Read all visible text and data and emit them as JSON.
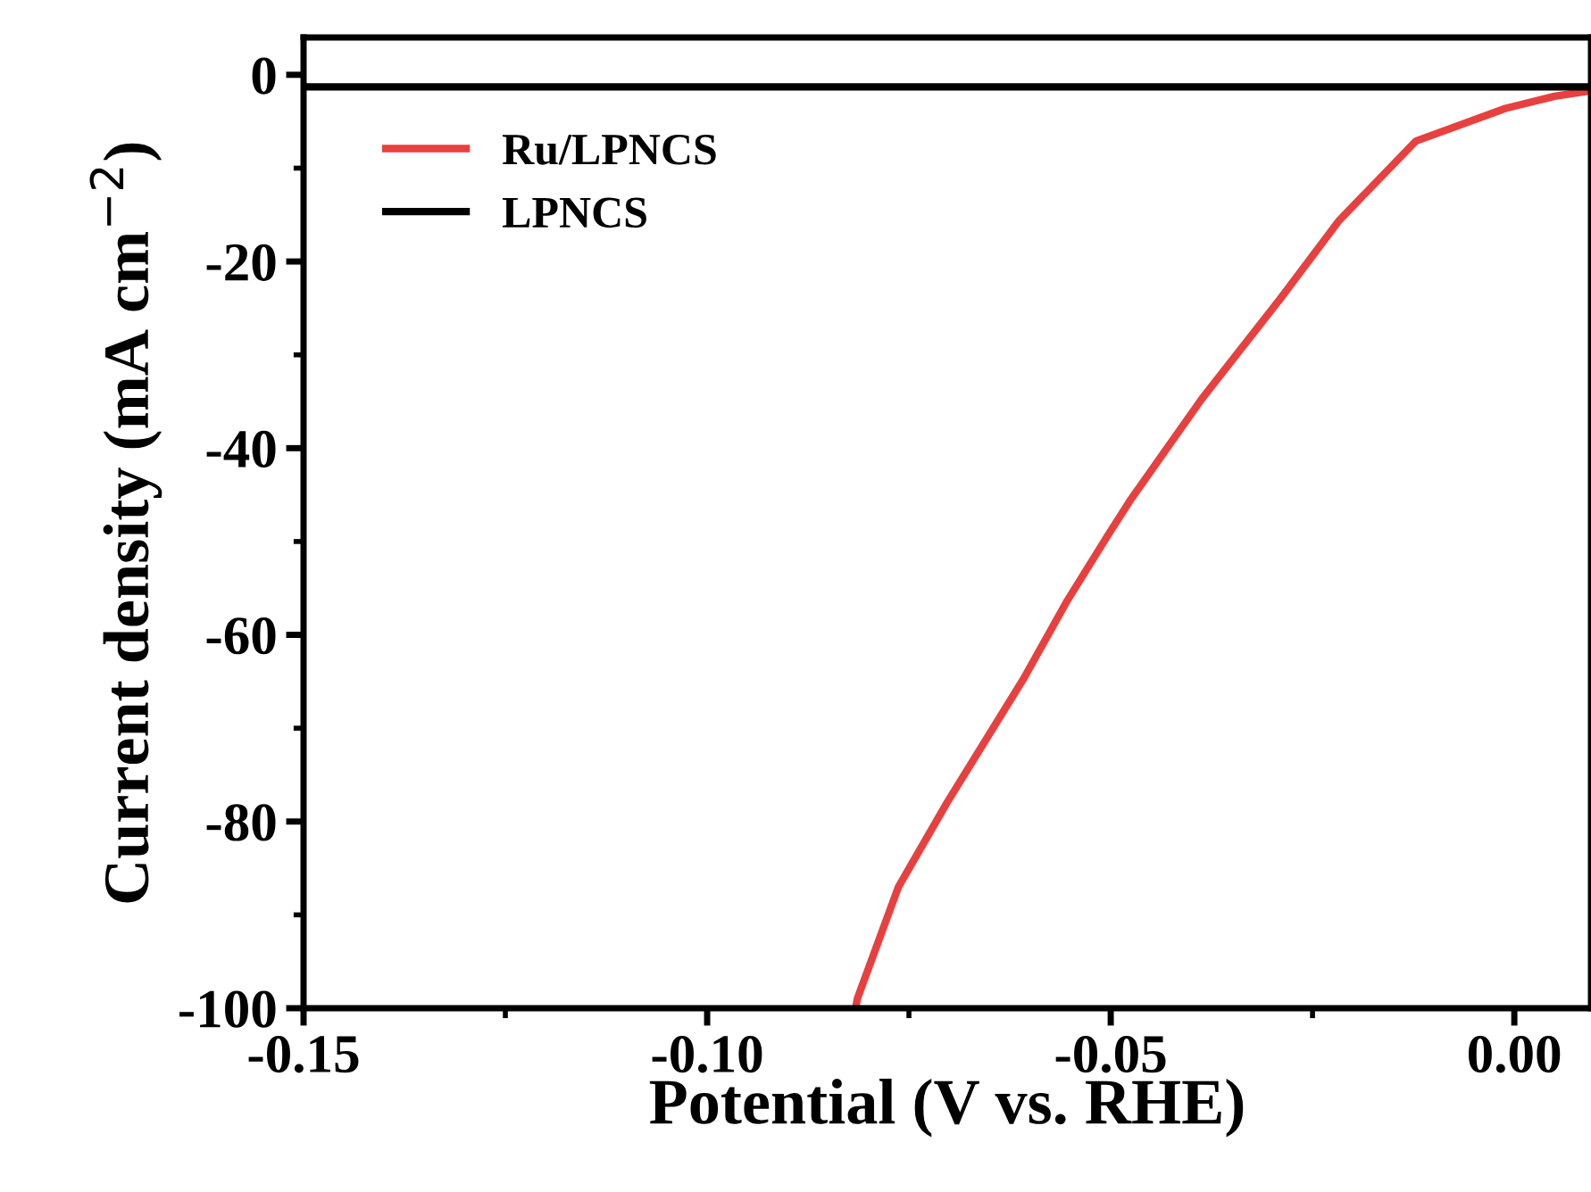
{
  "chart_data": {
    "type": "line",
    "xlabel": "Potential (V vs. RHE)",
    "ylabel": "Current density (mA cm$^{−2}$)",
    "xlim": [
      -0.15,
      0.0095
    ],
    "ylim": [
      -100,
      4
    ],
    "xticks": [
      {
        "value": -0.15,
        "label": "-0.15"
      },
      {
        "value": -0.125,
        "label": null
      },
      {
        "value": -0.1,
        "label": "-0.10"
      },
      {
        "value": -0.075,
        "label": null
      },
      {
        "value": -0.05,
        "label": "-0.05"
      },
      {
        "value": -0.025,
        "label": null
      },
      {
        "value": 0,
        "label": "0.00"
      }
    ],
    "yticks": [
      -100,
      {
        "value": -90,
        "label": null
      },
      -80,
      {
        "value": -70,
        "label": null
      },
      -60,
      {
        "value": -50,
        "label": null
      },
      -40,
      {
        "value": -30,
        "label": null
      },
      -20,
      {
        "value": -10,
        "label": null
      },
      0
    ],
    "legend": "top left",
    "line_style": "solid",
    "marker": "none",
    "grid": false,
    "series": [
      {
        "name": "Ru/LPNCS",
        "color": "#e8403f",
        "x": [
          -0.0816,
          -0.0814,
          -0.0763,
          -0.0703,
          -0.0608,
          -0.0555,
          -0.0504,
          -0.0476,
          -0.0387,
          -0.029,
          -0.0217,
          -0.0122,
          -0.0011,
          0.005,
          0.0095
        ],
        "values": [
          -100,
          -99,
          -87,
          -78,
          -64.7,
          -56.5,
          -49.4,
          -45.6,
          -34.7,
          -24,
          -15.6,
          -7.1,
          -3.6,
          -2.3,
          -1.7
        ]
      },
      {
        "name": "LPNCS",
        "color": "#000000",
        "x": [
          -0.15,
          0.0095
        ],
        "values": [
          -1.3,
          -1.3
        ]
      }
    ]
  }
}
